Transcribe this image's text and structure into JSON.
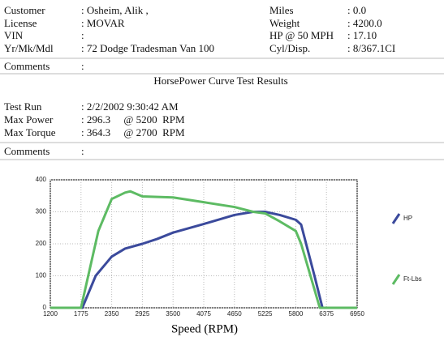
{
  "header": {
    "left": [
      {
        "label": "Customer",
        "value": ": Osheim, Alik ,"
      },
      {
        "label": "License",
        "value": ": MOVAR"
      },
      {
        "label": "VIN",
        "value": ":"
      },
      {
        "label": "Yr/Mk/Mdl",
        "value": ": 72 Dodge Tradesman Van 100"
      }
    ],
    "right": [
      {
        "label": "Miles",
        "value": ": 0.0"
      },
      {
        "label": "Weight",
        "value": ": 4200.0"
      },
      {
        "label": "HP @ 50 MPH",
        "value": ": 17.10"
      },
      {
        "label": "Cyl/Disp.",
        "value": ": 8/367.1CI"
      }
    ],
    "comments": {
      "label": "Comments",
      "value": ":"
    }
  },
  "results": {
    "title": "HorsePower Curve Test Results",
    "rows": [
      {
        "label": "Test Run",
        "value": ": 2/2/2002 9:30:42 AM"
      },
      {
        "label": "Max Power",
        "value": ": 296.3     @ 5200  RPM"
      },
      {
        "label": "Max Torque",
        "value": ": 364.3     @ 2700  RPM"
      }
    ],
    "comments": {
      "label": "Comments",
      "value": ":"
    }
  },
  "chart_data": {
    "type": "line",
    "x_label": "Speed (RPM)",
    "xlim": [
      1200,
      6950
    ],
    "xticks": [
      1200,
      1775,
      2350,
      2925,
      3500,
      4075,
      4650,
      5225,
      5800,
      6375,
      6950
    ],
    "ylim": [
      0,
      400
    ],
    "yticks": [
      0,
      100,
      200,
      300,
      400
    ],
    "grid": true,
    "series": [
      {
        "name": "HP",
        "color": "#3b4a9c",
        "x": [
          1200,
          1800,
          2050,
          2350,
          2600,
          2925,
          3200,
          3500,
          4075,
          4650,
          5000,
          5225,
          5500,
          5800,
          5900,
          6150,
          6300,
          6950
        ],
        "values": [
          0,
          0,
          100,
          160,
          185,
          200,
          215,
          235,
          262,
          290,
          300,
          300,
          290,
          275,
          260,
          100,
          0,
          0
        ]
      },
      {
        "name": "Ft-Lbs",
        "color": "#5dbb63",
        "x": [
          1200,
          1775,
          2100,
          2350,
          2600,
          2700,
          2925,
          3500,
          4075,
          4650,
          5000,
          5225,
          5500,
          5800,
          5900,
          6250,
          6950
        ],
        "values": [
          0,
          0,
          240,
          340,
          360,
          364,
          348,
          345,
          330,
          315,
          300,
          295,
          270,
          240,
          200,
          0,
          0
        ]
      }
    ]
  }
}
